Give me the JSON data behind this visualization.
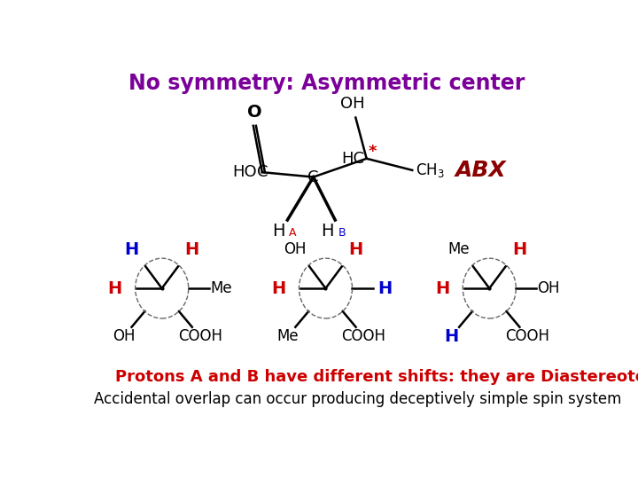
{
  "title": "No symmetry: Asymmetric center",
  "title_color": "#7B0099",
  "title_fontsize": 17,
  "abx_label": "ABX",
  "abx_color": "#8B0000",
  "abx_fontsize": 18,
  "line1_text": "Protons A and B have different shifts: they are Diastereotopic",
  "line1_color": "#CC0000",
  "line1_fontsize": 13,
  "line2_text": "Accidental overlap can occur producing deceptively simple spin system",
  "line2_color": "#000000",
  "line2_fontsize": 12,
  "bg_color": "#FFFFFF",
  "black": "#000000",
  "red": "#CC0000",
  "blue": "#0000CC",
  "darkred": "#8B0000"
}
